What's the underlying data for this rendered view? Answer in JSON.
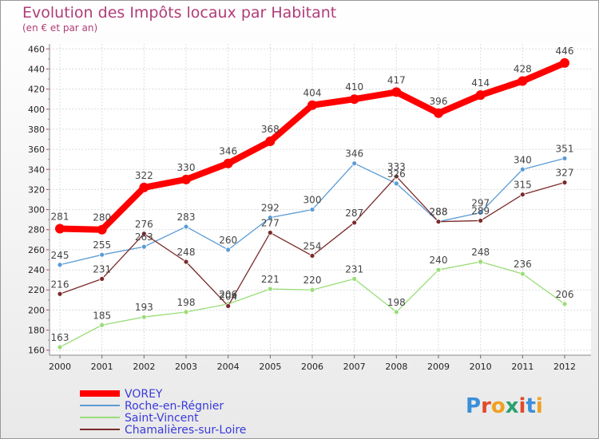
{
  "chart_data": {
    "type": "line",
    "title": "Evolution des Impôts locaux par Habitant",
    "subtitle": "(en € et par an)",
    "xlabel": "",
    "ylabel": "",
    "categories": [
      "2000",
      "2001",
      "2002",
      "2003",
      "2004",
      "2005",
      "2006",
      "2007",
      "2008",
      "2009",
      "2010",
      "2011",
      "2012"
    ],
    "ylim": [
      155,
      465
    ],
    "yticks": [
      "160",
      "180",
      "200",
      "220",
      "240",
      "260",
      "280",
      "300",
      "320",
      "340",
      "360",
      "380",
      "400",
      "420",
      "440",
      "460"
    ],
    "grid": true,
    "legend_position": "bottom-left",
    "series": [
      {
        "name": "VOREY",
        "color": "#ff0000",
        "values": [
          281,
          280,
          322,
          330,
          346,
          368,
          404,
          410,
          417,
          396,
          414,
          428,
          446
        ],
        "labels": [
          "281",
          "280",
          "322",
          "330",
          "346",
          "368",
          "404",
          "410",
          "417",
          "396",
          "414",
          "428",
          "446"
        ]
      },
      {
        "name": "Roche-en-Régnier",
        "color": "#5b9bd5",
        "values": [
          245,
          255,
          263,
          283,
          260,
          292,
          300,
          346,
          326,
          288,
          297,
          340,
          351
        ],
        "labels": [
          "245",
          "255",
          "263",
          "283",
          "260",
          "292",
          "300",
          "346",
          "326",
          "288",
          "297",
          "340",
          "351"
        ]
      },
      {
        "name": "Saint-Vincent",
        "color": "#99dd77",
        "values": [
          163,
          185,
          193,
          198,
          206,
          221,
          220,
          231,
          198,
          240,
          248,
          236,
          206
        ],
        "labels": [
          "163",
          "185",
          "193",
          "198",
          "206",
          "221",
          "220",
          "231",
          "198",
          "240",
          "248",
          "236",
          "206"
        ]
      },
      {
        "name": "Chamalières-sur-Loire",
        "color": "#7a2a2a",
        "values": [
          216,
          231,
          276,
          248,
          204,
          277,
          254,
          287,
          333,
          288,
          289,
          315,
          327
        ],
        "labels": [
          "216",
          "231",
          "276",
          "248",
          "204",
          "277",
          "254",
          "287",
          "333",
          "288",
          "289",
          "315",
          "327"
        ]
      }
    ]
  },
  "logo": {
    "letters": [
      "P",
      "r",
      "o",
      "x",
      "i",
      "t",
      "i"
    ],
    "colors": [
      "#3a8fd8",
      "#e04a2a",
      "#f0a020",
      "#2aa070",
      "#e04a2a",
      "#3a8fd8",
      "#f0a020"
    ]
  }
}
